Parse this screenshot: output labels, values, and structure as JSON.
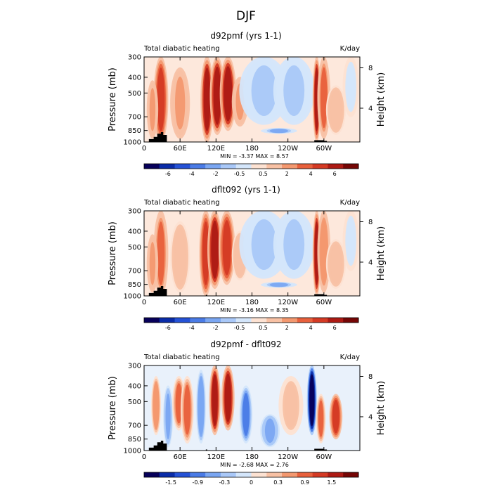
{
  "figure": {
    "title": "DJF"
  },
  "chart_data": [
    {
      "type": "heatmap",
      "title": "d92pmf (yrs 1-1)",
      "left_label": "Total diabatic heating",
      "units": "K/day",
      "ylabel": "Pressure (mb)",
      "ylabel_right": "Height (km)",
      "x_ticks": [
        "0",
        "60E",
        "120E",
        "180",
        "120W",
        "60W"
      ],
      "y_ticks": [
        "300",
        "400",
        "500",
        "700",
        "850",
        "1000"
      ],
      "height_ticks": [
        "8",
        "4"
      ],
      "stats": "MIN =   -3.37   MAX =   8.57",
      "colorbar_labels": [
        "-6",
        "-4",
        "-2",
        "-0.5",
        "0.5",
        "2",
        "4",
        "6"
      ],
      "features": [
        {
          "lon": 28,
          "p_top": 300,
          "p_bot": 1000,
          "v": 4.5,
          "w": 9
        },
        {
          "lon": 14,
          "p_top": 420,
          "p_bot": 950,
          "v": 2.5,
          "w": 7
        },
        {
          "lon": 60,
          "p_top": 350,
          "p_bot": 950,
          "v": 2.2,
          "w": 12
        },
        {
          "lon": 105,
          "p_top": 300,
          "p_bot": 1000,
          "v": 5.5,
          "w": 8
        },
        {
          "lon": 122,
          "p_top": 300,
          "p_bot": 900,
          "v": 6.0,
          "w": 9
        },
        {
          "lon": 140,
          "p_top": 300,
          "p_bot": 850,
          "v": 5.5,
          "w": 10
        },
        {
          "lon": 160,
          "p_top": 400,
          "p_bot": 800,
          "v": 2.5,
          "w": 10
        },
        {
          "lon": 200,
          "p_top": 300,
          "p_bot": 780,
          "v": -2.0,
          "w": 30
        },
        {
          "lon": 250,
          "p_top": 300,
          "p_bot": 780,
          "v": -2.0,
          "w": 25
        },
        {
          "lon": 225,
          "p_top": 820,
          "p_bot": 890,
          "v": -3.0,
          "w": 22
        },
        {
          "lon": 288,
          "p_top": 300,
          "p_bot": 1000,
          "v": 6.0,
          "w": 5
        },
        {
          "lon": 300,
          "p_top": 300,
          "p_bot": 950,
          "v": 3.5,
          "w": 8
        },
        {
          "lon": 320,
          "p_top": 450,
          "p_bot": 900,
          "v": 2.0,
          "w": 12
        },
        {
          "lon": 345,
          "p_top": 300,
          "p_bot": 700,
          "v": -0.8,
          "w": 10
        }
      ]
    },
    {
      "type": "heatmap",
      "title": "dflt092 (yrs 1-1)",
      "left_label": "Total diabatic heating",
      "units": "K/day",
      "ylabel": "Pressure (mb)",
      "ylabel_right": "Height (km)",
      "x_ticks": [
        "0",
        "60E",
        "120E",
        "180",
        "120W",
        "60W"
      ],
      "y_ticks": [
        "300",
        "400",
        "500",
        "700",
        "850",
        "1000"
      ],
      "height_ticks": [
        "8",
        "4"
      ],
      "stats": "MIN =   -3.16   MAX =   8.35",
      "colorbar_labels": [
        "-6",
        "-4",
        "-2",
        "-0.5",
        "0.5",
        "2",
        "4",
        "6"
      ],
      "features": [
        {
          "lon": 28,
          "p_top": 300,
          "p_bot": 1000,
          "v": 4.0,
          "w": 9
        },
        {
          "lon": 14,
          "p_top": 420,
          "p_bot": 950,
          "v": 2.2,
          "w": 7
        },
        {
          "lon": 60,
          "p_top": 350,
          "p_bot": 950,
          "v": 2.0,
          "w": 12
        },
        {
          "lon": 103,
          "p_top": 300,
          "p_bot": 1000,
          "v": 5.0,
          "w": 8
        },
        {
          "lon": 118,
          "p_top": 300,
          "p_bot": 900,
          "v": 5.5,
          "w": 9
        },
        {
          "lon": 138,
          "p_top": 300,
          "p_bot": 850,
          "v": 5.0,
          "w": 10
        },
        {
          "lon": 160,
          "p_top": 400,
          "p_bot": 800,
          "v": 2.0,
          "w": 10
        },
        {
          "lon": 200,
          "p_top": 300,
          "p_bot": 780,
          "v": -2.0,
          "w": 30
        },
        {
          "lon": 250,
          "p_top": 300,
          "p_bot": 780,
          "v": -2.0,
          "w": 25
        },
        {
          "lon": 225,
          "p_top": 820,
          "p_bot": 890,
          "v": -3.0,
          "w": 22
        },
        {
          "lon": 288,
          "p_top": 300,
          "p_bot": 1000,
          "v": 5.5,
          "w": 5
        },
        {
          "lon": 300,
          "p_top": 300,
          "p_bot": 950,
          "v": 3.0,
          "w": 8
        },
        {
          "lon": 320,
          "p_top": 450,
          "p_bot": 900,
          "v": 1.8,
          "w": 12
        },
        {
          "lon": 345,
          "p_top": 300,
          "p_bot": 700,
          "v": -0.8,
          "w": 10
        }
      ]
    },
    {
      "type": "heatmap",
      "title": "d92pmf - dflt092",
      "left_label": "Total diabatic heating",
      "units": "K/day",
      "ylabel": "Pressure (mb)",
      "ylabel_right": "Height (km)",
      "x_ticks": [
        "0",
        "60E",
        "120E",
        "180",
        "120W",
        "60W"
      ],
      "y_ticks": [
        "300",
        "400",
        "500",
        "700",
        "850",
        "1000"
      ],
      "height_ticks": [
        "8",
        "4"
      ],
      "stats": "MIN =   -2.68   MAX =   2.76",
      "colorbar_labels": [
        "-1.5",
        "-0.9",
        "-0.3",
        "0",
        "0.3",
        "0.9",
        "1.5"
      ],
      "features": [
        {
          "lon": 20,
          "p_top": 350,
          "p_bot": 800,
          "v": 0.9,
          "w": 6
        },
        {
          "lon": 40,
          "p_top": 400,
          "p_bot": 950,
          "v": -0.6,
          "w": 6
        },
        {
          "lon": 58,
          "p_top": 350,
          "p_bot": 750,
          "v": 1.2,
          "w": 8
        },
        {
          "lon": 72,
          "p_top": 350,
          "p_bot": 900,
          "v": 1.0,
          "w": 8
        },
        {
          "lon": 95,
          "p_top": 320,
          "p_bot": 900,
          "v": -0.8,
          "w": 6
        },
        {
          "lon": 118,
          "p_top": 300,
          "p_bot": 800,
          "v": 1.8,
          "w": 7
        },
        {
          "lon": 140,
          "p_top": 300,
          "p_bot": 750,
          "v": 1.6,
          "w": 8
        },
        {
          "lon": 170,
          "p_top": 400,
          "p_bot": 900,
          "v": -0.9,
          "w": 8
        },
        {
          "lon": 210,
          "p_top": 600,
          "p_bot": 950,
          "v": -0.6,
          "w": 12
        },
        {
          "lon": 245,
          "p_top": 350,
          "p_bot": 800,
          "v": 0.5,
          "w": 15
        },
        {
          "lon": 280,
          "p_top": 300,
          "p_bot": 800,
          "v": -2.0,
          "w": 6
        },
        {
          "lon": 295,
          "p_top": 450,
          "p_bot": 900,
          "v": 1.0,
          "w": 6
        },
        {
          "lon": 320,
          "p_top": 450,
          "p_bot": 850,
          "v": 1.5,
          "w": 8
        }
      ]
    }
  ],
  "colors": {
    "positive": "#e8603c",
    "negative": "#4a6fdb",
    "land": "#000000"
  }
}
